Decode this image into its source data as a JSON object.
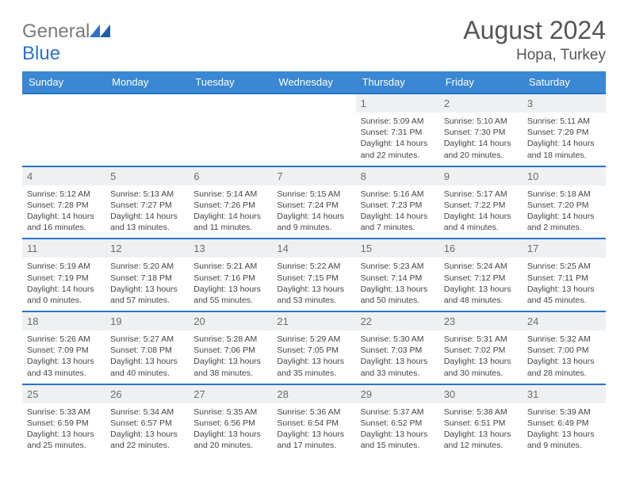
{
  "logo": {
    "text_left": "General",
    "text_right": "Blue",
    "color_left": "#7a7a7a",
    "color_right": "#2c72c7"
  },
  "title": "August 2024",
  "location": "Hopa, Turkey",
  "colors": {
    "header_bg": "#3a87d4",
    "header_fg": "#ffffff",
    "row_border": "#2c72c7",
    "daynum_bg": "#eef0f2",
    "daynum_fg": "#6d6d6d",
    "text": "#444444",
    "title_color": "#555555"
  },
  "weekdays": [
    "Sunday",
    "Monday",
    "Tuesday",
    "Wednesday",
    "Thursday",
    "Friday",
    "Saturday"
  ],
  "weeks": [
    [
      null,
      null,
      null,
      null,
      {
        "n": "1",
        "sr": "Sunrise: 5:09 AM",
        "ss": "Sunset: 7:31 PM",
        "dl": "Daylight: 14 hours and 22 minutes."
      },
      {
        "n": "2",
        "sr": "Sunrise: 5:10 AM",
        "ss": "Sunset: 7:30 PM",
        "dl": "Daylight: 14 hours and 20 minutes."
      },
      {
        "n": "3",
        "sr": "Sunrise: 5:11 AM",
        "ss": "Sunset: 7:29 PM",
        "dl": "Daylight: 14 hours and 18 minutes."
      }
    ],
    [
      {
        "n": "4",
        "sr": "Sunrise: 5:12 AM",
        "ss": "Sunset: 7:28 PM",
        "dl": "Daylight: 14 hours and 16 minutes."
      },
      {
        "n": "5",
        "sr": "Sunrise: 5:13 AM",
        "ss": "Sunset: 7:27 PM",
        "dl": "Daylight: 14 hours and 13 minutes."
      },
      {
        "n": "6",
        "sr": "Sunrise: 5:14 AM",
        "ss": "Sunset: 7:26 PM",
        "dl": "Daylight: 14 hours and 11 minutes."
      },
      {
        "n": "7",
        "sr": "Sunrise: 5:15 AM",
        "ss": "Sunset: 7:24 PM",
        "dl": "Daylight: 14 hours and 9 minutes."
      },
      {
        "n": "8",
        "sr": "Sunrise: 5:16 AM",
        "ss": "Sunset: 7:23 PM",
        "dl": "Daylight: 14 hours and 7 minutes."
      },
      {
        "n": "9",
        "sr": "Sunrise: 5:17 AM",
        "ss": "Sunset: 7:22 PM",
        "dl": "Daylight: 14 hours and 4 minutes."
      },
      {
        "n": "10",
        "sr": "Sunrise: 5:18 AM",
        "ss": "Sunset: 7:20 PM",
        "dl": "Daylight: 14 hours and 2 minutes."
      }
    ],
    [
      {
        "n": "11",
        "sr": "Sunrise: 5:19 AM",
        "ss": "Sunset: 7:19 PM",
        "dl": "Daylight: 14 hours and 0 minutes."
      },
      {
        "n": "12",
        "sr": "Sunrise: 5:20 AM",
        "ss": "Sunset: 7:18 PM",
        "dl": "Daylight: 13 hours and 57 minutes."
      },
      {
        "n": "13",
        "sr": "Sunrise: 5:21 AM",
        "ss": "Sunset: 7:16 PM",
        "dl": "Daylight: 13 hours and 55 minutes."
      },
      {
        "n": "14",
        "sr": "Sunrise: 5:22 AM",
        "ss": "Sunset: 7:15 PM",
        "dl": "Daylight: 13 hours and 53 minutes."
      },
      {
        "n": "15",
        "sr": "Sunrise: 5:23 AM",
        "ss": "Sunset: 7:14 PM",
        "dl": "Daylight: 13 hours and 50 minutes."
      },
      {
        "n": "16",
        "sr": "Sunrise: 5:24 AM",
        "ss": "Sunset: 7:12 PM",
        "dl": "Daylight: 13 hours and 48 minutes."
      },
      {
        "n": "17",
        "sr": "Sunrise: 5:25 AM",
        "ss": "Sunset: 7:11 PM",
        "dl": "Daylight: 13 hours and 45 minutes."
      }
    ],
    [
      {
        "n": "18",
        "sr": "Sunrise: 5:26 AM",
        "ss": "Sunset: 7:09 PM",
        "dl": "Daylight: 13 hours and 43 minutes."
      },
      {
        "n": "19",
        "sr": "Sunrise: 5:27 AM",
        "ss": "Sunset: 7:08 PM",
        "dl": "Daylight: 13 hours and 40 minutes."
      },
      {
        "n": "20",
        "sr": "Sunrise: 5:28 AM",
        "ss": "Sunset: 7:06 PM",
        "dl": "Daylight: 13 hours and 38 minutes."
      },
      {
        "n": "21",
        "sr": "Sunrise: 5:29 AM",
        "ss": "Sunset: 7:05 PM",
        "dl": "Daylight: 13 hours and 35 minutes."
      },
      {
        "n": "22",
        "sr": "Sunrise: 5:30 AM",
        "ss": "Sunset: 7:03 PM",
        "dl": "Daylight: 13 hours and 33 minutes."
      },
      {
        "n": "23",
        "sr": "Sunrise: 5:31 AM",
        "ss": "Sunset: 7:02 PM",
        "dl": "Daylight: 13 hours and 30 minutes."
      },
      {
        "n": "24",
        "sr": "Sunrise: 5:32 AM",
        "ss": "Sunset: 7:00 PM",
        "dl": "Daylight: 13 hours and 28 minutes."
      }
    ],
    [
      {
        "n": "25",
        "sr": "Sunrise: 5:33 AM",
        "ss": "Sunset: 6:59 PM",
        "dl": "Daylight: 13 hours and 25 minutes."
      },
      {
        "n": "26",
        "sr": "Sunrise: 5:34 AM",
        "ss": "Sunset: 6:57 PM",
        "dl": "Daylight: 13 hours and 22 minutes."
      },
      {
        "n": "27",
        "sr": "Sunrise: 5:35 AM",
        "ss": "Sunset: 6:56 PM",
        "dl": "Daylight: 13 hours and 20 minutes."
      },
      {
        "n": "28",
        "sr": "Sunrise: 5:36 AM",
        "ss": "Sunset: 6:54 PM",
        "dl": "Daylight: 13 hours and 17 minutes."
      },
      {
        "n": "29",
        "sr": "Sunrise: 5:37 AM",
        "ss": "Sunset: 6:52 PM",
        "dl": "Daylight: 13 hours and 15 minutes."
      },
      {
        "n": "30",
        "sr": "Sunrise: 5:38 AM",
        "ss": "Sunset: 6:51 PM",
        "dl": "Daylight: 13 hours and 12 minutes."
      },
      {
        "n": "31",
        "sr": "Sunrise: 5:39 AM",
        "ss": "Sunset: 6:49 PM",
        "dl": "Daylight: 13 hours and 9 minutes."
      }
    ]
  ]
}
